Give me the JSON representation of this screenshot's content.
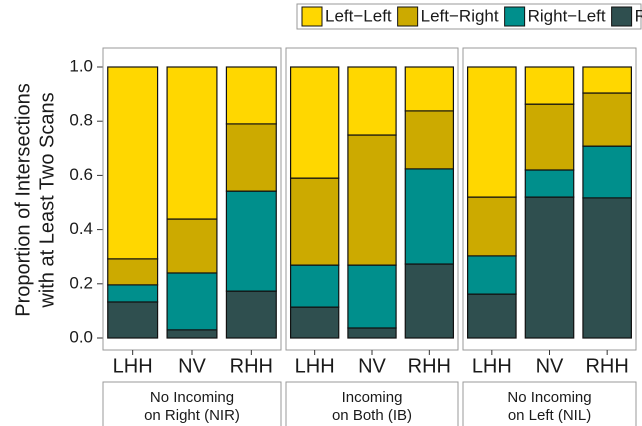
{
  "chart_data": {
    "type": "bar",
    "stacked": true,
    "ylabel": [
      "Proportion of Intersections",
      "with at Least Two Scans"
    ],
    "ylim": [
      0,
      1
    ],
    "yticks": [
      {
        "value": 0,
        "label": "0.0"
      },
      {
        "value": 0.2,
        "label": "0.2"
      },
      {
        "value": 0.4,
        "label": "0.4"
      },
      {
        "value": 0.6,
        "label": "0.6"
      },
      {
        "value": 0.8,
        "label": "0.8"
      },
      {
        "value": 1,
        "label": "1.0"
      }
    ],
    "legend": "top",
    "facets": [
      {
        "label": [
          "No Incoming",
          "on Right (NIR)"
        ],
        "categories": [
          "LHH",
          "NV",
          "RHH"
        ]
      },
      {
        "label": [
          "Incoming",
          "on Both (IB)"
        ],
        "categories": [
          "LHH",
          "NV",
          "RHH"
        ]
      },
      {
        "label": [
          "No Incoming",
          "on Left (NIL)"
        ],
        "categories": [
          "LHH",
          "NV",
          "RHH"
        ]
      }
    ],
    "series": [
      {
        "name": "Left−Left",
        "color": "#FFD700",
        "values": [
          [
            0.708,
            0.561,
            0.21
          ],
          [
            0.41,
            0.251,
            0.162
          ],
          [
            0.48,
            0.137,
            0.096
          ]
        ]
      },
      {
        "name": "Left−Right",
        "color": "#CCAA00",
        "values": [
          [
            0.096,
            0.199,
            0.248
          ],
          [
            0.321,
            0.48,
            0.214
          ],
          [
            0.217,
            0.243,
            0.196
          ]
        ]
      },
      {
        "name": "Right−Left",
        "color": "#008F8C",
        "values": [
          [
            0.063,
            0.21,
            0.369
          ],
          [
            0.155,
            0.232,
            0.351
          ],
          [
            0.141,
            0.1,
            0.191
          ]
        ]
      },
      {
        "name": "Right−Right",
        "color": "#2F4F4F",
        "values": [
          [
            0.133,
            0.03,
            0.173
          ],
          [
            0.114,
            0.037,
            0.273
          ],
          [
            0.162,
            0.52,
            0.517
          ]
        ]
      }
    ]
  }
}
